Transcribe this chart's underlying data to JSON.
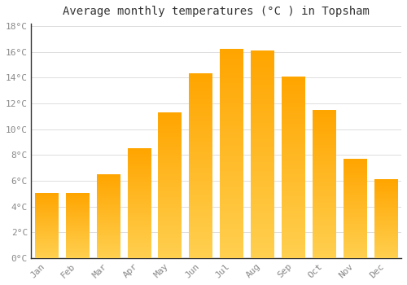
{
  "title": "Average monthly temperatures (°C ) in Topsham",
  "months": [
    "Jan",
    "Feb",
    "Mar",
    "Apr",
    "May",
    "Jun",
    "Jul",
    "Aug",
    "Sep",
    "Oct",
    "Nov",
    "Dec"
  ],
  "values": [
    5.0,
    5.0,
    6.5,
    8.5,
    11.3,
    14.3,
    16.2,
    16.1,
    14.1,
    11.5,
    7.7,
    6.1
  ],
  "bar_color_top": "#FFA500",
  "bar_color_bottom": "#FFD050",
  "background_color": "#FFFFFF",
  "grid_color": "#DDDDDD",
  "ylim": [
    0,
    18
  ],
  "ytick_step": 2,
  "title_fontsize": 10,
  "tick_fontsize": 8,
  "tick_color": "#888888",
  "spine_color": "#333333"
}
